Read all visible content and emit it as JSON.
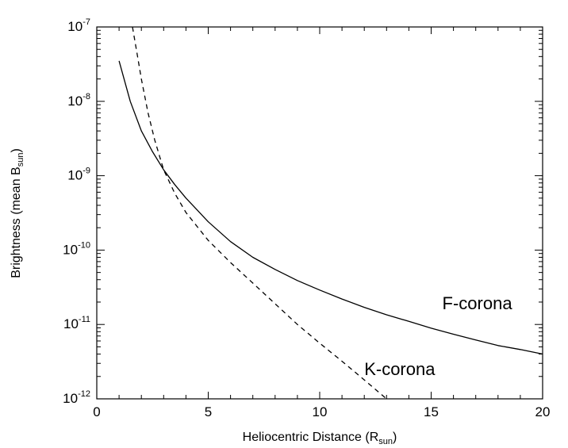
{
  "chart_data": {
    "type": "line",
    "xlabel": "Heliocentric Distance (R",
    "xlabel_sub": "sun",
    "xlabel_end": ")",
    "ylabel": "Brightness (mean B",
    "ylabel_sub": "sun",
    "ylabel_end": ")",
    "xlim": [
      0,
      20
    ],
    "ylim": [
      1e-12,
      1e-07
    ],
    "yscale": "log",
    "grid": false,
    "x_ticks": [
      0,
      5,
      10,
      15,
      20
    ],
    "x_tick_labels": [
      "0",
      "5",
      "10",
      "15",
      "20"
    ],
    "y_ticks": [
      -12,
      -11,
      -10,
      -9,
      -8,
      -7
    ],
    "y_tick_base": "10",
    "y_tick_exps": [
      "-12",
      "-11",
      "-10",
      "-9",
      "-8",
      "-7"
    ],
    "series": [
      {
        "name": "F-corona",
        "style": "solid",
        "color": "#000000",
        "x": [
          1.0,
          1.5,
          2.0,
          2.5,
          3.0,
          3.5,
          4.0,
          5.0,
          6.0,
          7.0,
          8.0,
          9.0,
          10.0,
          11.0,
          12.0,
          13.0,
          14.0,
          15.0,
          16.0,
          17.0,
          18.0,
          19.0,
          20.0
        ],
        "y": [
          3.5e-08,
          1e-08,
          4e-09,
          2.1e-09,
          1.2e-09,
          7.6e-10,
          5e-10,
          2.4e-10,
          1.3e-10,
          8e-11,
          5.5e-11,
          3.9e-11,
          2.9e-11,
          2.2e-11,
          1.7e-11,
          1.35e-11,
          1.1e-11,
          8.9e-12,
          7.4e-12,
          6.2e-12,
          5.2e-12,
          4.6e-12,
          4e-12
        ]
      },
      {
        "name": "K-corona",
        "style": "dashed",
        "color": "#000000",
        "x": [
          1.6,
          1.8,
          2.0,
          2.3,
          2.6,
          3.0,
          3.5,
          4.0,
          5.0,
          6.0,
          7.0,
          8.0,
          9.0,
          10.0,
          11.0,
          12.0,
          13.0
        ],
        "y": [
          1e-07,
          4.5e-08,
          2e-08,
          7e-09,
          3e-09,
          1.2e-09,
          5.8e-10,
          3.2e-10,
          1.35e-10,
          6.8e-11,
          3.6e-11,
          1.9e-11,
          1e-11,
          5.6e-12,
          3.2e-12,
          1.8e-12,
          1e-12
        ]
      }
    ],
    "annotations": [
      {
        "text": "F-corona",
        "x": 15.5,
        "y": 1.6e-11
      },
      {
        "text": "K-corona",
        "x": 12.0,
        "y": 2.1e-12
      }
    ]
  }
}
